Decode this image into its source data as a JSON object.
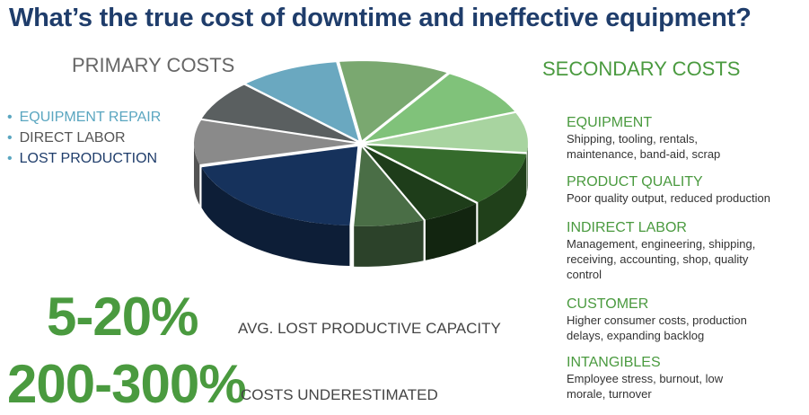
{
  "title": "What’s the true cost of downtime and ineffective equipment?",
  "primary": {
    "heading": "PRIMARY COSTS",
    "items": [
      {
        "label": "EQUIPMENT REPAIR",
        "color": "#5aa6c0"
      },
      {
        "label": "DIRECT LABOR",
        "color": "#555555"
      },
      {
        "label": "LOST PRODUCTION",
        "color": "#1f3d6b"
      }
    ]
  },
  "secondary": {
    "heading": "SECONDARY COSTS",
    "items": [
      {
        "title": "EQUIPMENT",
        "desc": "Shipping, tooling, rentals, maintenance, band-aid, scrap"
      },
      {
        "title": "PRODUCT QUALITY",
        "desc": "Poor quality output, reduced production"
      },
      {
        "title": "INDIRECT LABOR",
        "desc": "Management, engineering, shipping, receiving, accounting, shop, quality control"
      },
      {
        "title": "CUSTOMER",
        "desc": "Higher consumer costs, production delays, expanding backlog"
      },
      {
        "title": "INTANGIBLES",
        "desc": "Employee stress, burnout, low morale, turnover"
      }
    ]
  },
  "stats": [
    {
      "value": "5-20%",
      "caption": "AVG. LOST PRODUCTIVE CAPACITY"
    },
    {
      "value": "200-300%",
      "caption": "COSTS UNDERESTIMATED"
    }
  ],
  "pie": {
    "slices": [
      {
        "share": 11,
        "color": "#7aa870"
      },
      {
        "share": 10,
        "color": "#80c27a"
      },
      {
        "share": 8,
        "color": "#a8d4a0"
      },
      {
        "share": 11,
        "color": "#356b2c"
      },
      {
        "share": 6,
        "color": "#1e3d1a"
      },
      {
        "share": 7,
        "color": "#4a6e46"
      },
      {
        "share": 20,
        "color": "#16325c"
      },
      {
        "share": 9,
        "color": "#8a8a8a"
      },
      {
        "share": 8,
        "color": "#5a5f60"
      },
      {
        "share": 10,
        "color": "#6aa8c0"
      }
    ]
  }
}
